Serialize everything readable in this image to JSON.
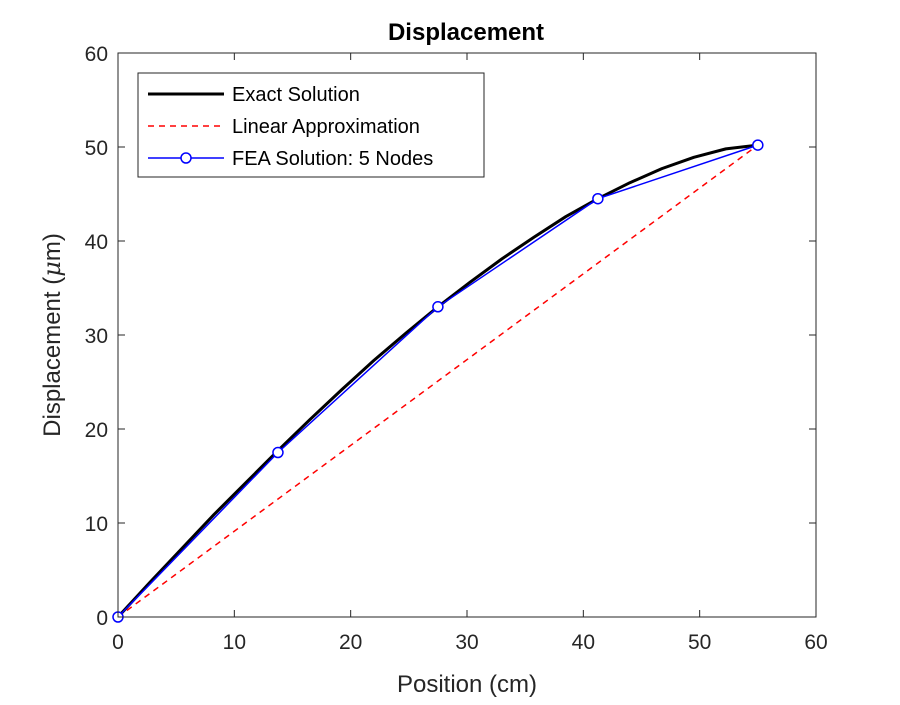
{
  "chart_data": {
    "type": "line",
    "title": "Displacement",
    "xlabel": "Position (cm)",
    "ylabel_prefix": "Displacement (",
    "ylabel_mu": "μ",
    "ylabel_suffix": "m)",
    "xlim": [
      0,
      60
    ],
    "ylim": [
      0,
      60
    ],
    "xticks": [
      0,
      10,
      20,
      30,
      40,
      50,
      60
    ],
    "yticks": [
      0,
      10,
      20,
      30,
      40,
      50,
      60
    ],
    "grid": false,
    "legend_position": "top-left",
    "series": [
      {
        "name": "Exact Solution",
        "style": "solid",
        "color": "#000000",
        "x": [
          0,
          2.75,
          5.5,
          8.25,
          11,
          13.75,
          16.5,
          19.25,
          22,
          24.75,
          27.5,
          30.25,
          33,
          35.75,
          38.5,
          41.25,
          44,
          46.75,
          49.5,
          52.25,
          55
        ],
        "y": [
          0,
          3.7,
          7.3,
          10.9,
          14.3,
          17.7,
          21.0,
          24.2,
          27.3,
          30.2,
          33.0,
          35.6,
          38.1,
          40.4,
          42.6,
          44.5,
          46.2,
          47.7,
          48.9,
          49.8,
          50.2
        ]
      },
      {
        "name": "Linear Approximation",
        "style": "dashed",
        "color": "#ff0000",
        "x": [
          0,
          55
        ],
        "y": [
          0,
          50.2
        ]
      },
      {
        "name": "FEA Solution: 5 Nodes",
        "style": "solid-markers",
        "color": "#0000ff",
        "x": [
          0,
          13.75,
          27.5,
          41.25,
          55
        ],
        "y": [
          0,
          17.5,
          33.0,
          44.5,
          50.2
        ]
      }
    ]
  }
}
